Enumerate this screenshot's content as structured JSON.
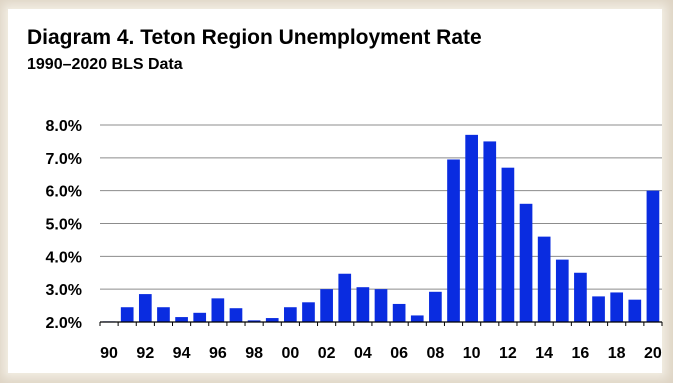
{
  "chart_data": {
    "type": "bar",
    "title": "Diagram 4. Teton Region Unemployment Rate",
    "subtitle": "1990–2020 BLS Data",
    "xlabel": "",
    "ylabel": "",
    "categories": [
      "90",
      "91",
      "92",
      "93",
      "94",
      "95",
      "96",
      "97",
      "98",
      "99",
      "00",
      "01",
      "02",
      "03",
      "04",
      "05",
      "06",
      "07",
      "08",
      "09",
      "10",
      "11",
      "12",
      "13",
      "14",
      "15",
      "16",
      "17",
      "18",
      "19",
      "20"
    ],
    "x_tick_labels": [
      "90",
      "92",
      "94",
      "96",
      "98",
      "00",
      "02",
      "04",
      "06",
      "08",
      "10",
      "12",
      "14",
      "16",
      "18",
      "20"
    ],
    "y_tick_labels": [
      "2.0%",
      "3.0%",
      "4.0%",
      "5.0%",
      "6.0%",
      "7.0%",
      "8.0%"
    ],
    "series": [
      {
        "values": [
          2.0,
          2.45,
          2.85,
          2.45,
          2.15,
          2.28,
          2.72,
          2.42,
          2.05,
          2.12,
          2.45,
          2.6,
          3.0,
          3.47,
          3.06,
          3.0,
          2.55,
          2.2,
          2.92,
          6.95,
          7.7,
          7.5,
          6.7,
          5.6,
          4.6,
          3.9,
          3.5,
          2.78,
          2.9,
          2.68,
          6.0
        ]
      }
    ],
    "ylim": [
      2.0,
      8.0
    ],
    "y_ticks": [
      2.0,
      3.0,
      4.0,
      5.0,
      6.0,
      7.0,
      8.0
    ],
    "grid": true,
    "bar_color": "#0a2ce0",
    "grid_color": "#8c8c8c"
  }
}
